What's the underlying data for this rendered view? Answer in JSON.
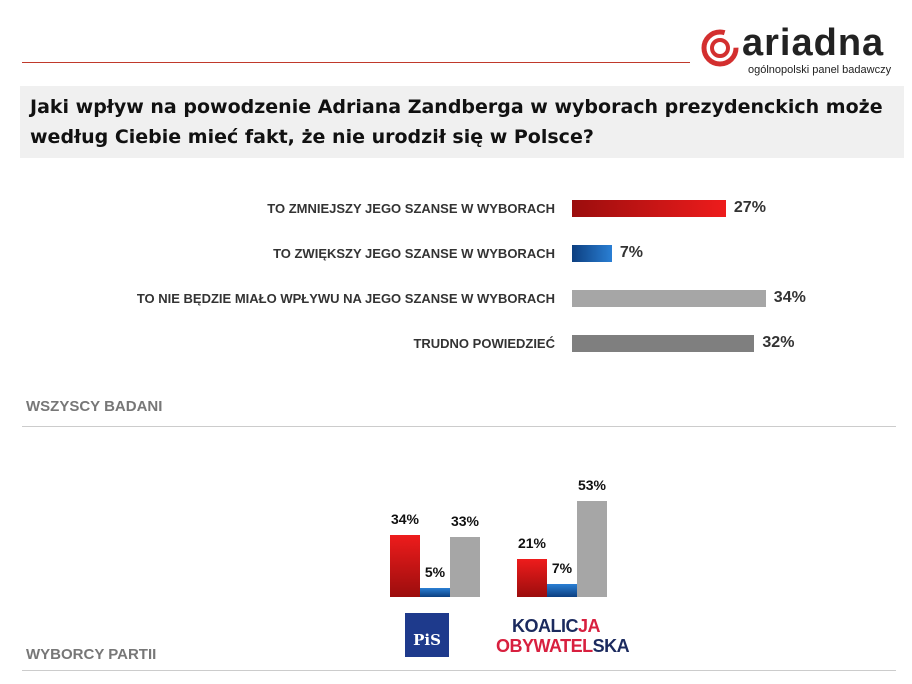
{
  "logo": {
    "word": "ariadna",
    "tagline": "ogólnopolski panel badawczy"
  },
  "question": "Jaki wpływ na powodzenie Adriana Zandberga w wyborach prezydenckich może według Ciebie mieć fakt, że nie urodził się w Polsce?",
  "colors": {
    "decrease": "#e31b1b",
    "increase": "#1f6fc0",
    "no_effect": "#a6a6a6",
    "dont_know": "#7f7f7f"
  },
  "chart_data": [
    {
      "type": "bar",
      "orientation": "horizontal",
      "title": "WSZYSCY BADANI",
      "categories": [
        "TO ZMNIEJSZY JEGO SZANSE W WYBORACH",
        "TO ZWIĘKSZY JEGO SZANSE W WYBORACH",
        "TO NIE BĘDZIE MIAŁO WPŁYWU NA JEGO SZANSE W WYBORACH",
        "TRUDNO POWIEDZIEĆ"
      ],
      "values": [
        27,
        7,
        34,
        32
      ],
      "labels": [
        "27%",
        "7%",
        "34%",
        "32%"
      ]
    },
    {
      "type": "bar",
      "title": "WYBORCY PARTII",
      "categories": [
        "PiS",
        "KOALICJA OBYWATELSKA"
      ],
      "series": [
        {
          "values": [
            34,
            21
          ],
          "labels": [
            "34%",
            "21%"
          ]
        },
        {
          "values": [
            5,
            7
          ],
          "labels": [
            "5%",
            "7%"
          ]
        },
        {
          "values": [
            33,
            53
          ],
          "labels": [
            "33%",
            "53%"
          ]
        }
      ]
    }
  ],
  "parties": {
    "pis": "PiS",
    "ko_line1_a": "KOALIC",
    "ko_line1_b": "JA",
    "ko_line2_a": "OBYWATEL",
    "ko_line2_b": "SKA"
  }
}
